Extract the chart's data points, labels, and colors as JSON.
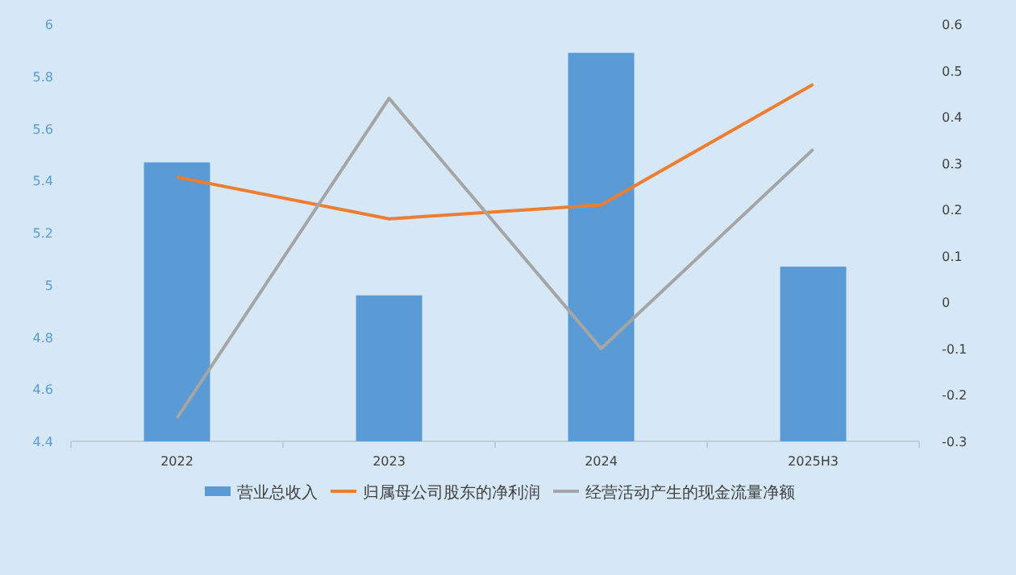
{
  "chart_data": {
    "type": "bar",
    "categories": [
      "2022",
      "2023",
      "2024",
      "2025H3"
    ],
    "series": [
      {
        "name": "营业总收入",
        "color": "#5b9bd5",
        "values": [
          5.47,
          4.96,
          5.89,
          5.07
        ]
      },
      {
        "name": "归属母公司股东的净利润",
        "type": "line",
        "axis": "y2",
        "color": "#ed7d31",
        "values": [
          0.27,
          0.18,
          0.21,
          0.47
        ]
      },
      {
        "name": "经营活动产生的现金流量净额",
        "type": "line",
        "axis": "y2",
        "color": "#a5a5a5",
        "values": [
          -0.25,
          0.44,
          -0.1,
          0.33
        ]
      }
    ],
    "ylim": [
      4.4,
      6
    ],
    "yticks": [
      4.4,
      4.6,
      4.8,
      5,
      5.2,
      5.4,
      5.6,
      5.8,
      6
    ],
    "y2lim": [
      -0.3,
      0.6
    ],
    "y2ticks": [
      -0.3,
      -0.2,
      -0.1,
      0,
      0.1,
      0.2,
      0.3,
      0.4,
      0.5,
      0.6
    ],
    "grid": false,
    "legend": "bottom",
    "marker": "none",
    "line_style": "solid"
  }
}
